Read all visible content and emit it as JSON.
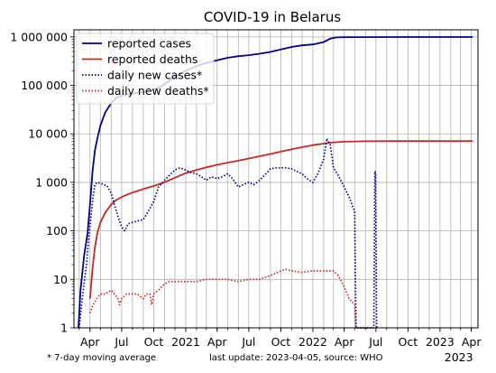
{
  "chart_data": {
    "type": "line",
    "title": "COVID-19 in Belarus",
    "y_scale": "log",
    "ylim": [
      1,
      1400000
    ],
    "xlim": [
      "2020-02-15",
      "2023-04-20"
    ],
    "grid": true,
    "legend_position": "top-left",
    "y_ticks": [
      {
        "value": 1,
        "label": "1"
      },
      {
        "value": 10,
        "label": "10"
      },
      {
        "value": 100,
        "label": "100"
      },
      {
        "value": 1000,
        "label": "1 000"
      },
      {
        "value": 10000,
        "label": "10 000"
      },
      {
        "value": 100000,
        "label": "100 000"
      },
      {
        "value": 1000000,
        "label": "1 000 000"
      }
    ],
    "x_ticks": [
      {
        "date": "2020-04-01",
        "label": "Apr"
      },
      {
        "date": "2020-07-01",
        "label": "Jul"
      },
      {
        "date": "2020-10-01",
        "label": "Oct"
      },
      {
        "date": "2021-01-01",
        "label": "2021"
      },
      {
        "date": "2021-04-01",
        "label": "Apr"
      },
      {
        "date": "2021-07-01",
        "label": "Jul"
      },
      {
        "date": "2021-10-01",
        "label": "Oct"
      },
      {
        "date": "2022-01-01",
        "label": "2022"
      },
      {
        "date": "2022-04-01",
        "label": "Apr"
      },
      {
        "date": "2022-07-01",
        "label": "Jul"
      },
      {
        "date": "2022-10-01",
        "label": "Oct"
      },
      {
        "date": "2023-01-01",
        "label": "2023"
      },
      {
        "date": "2023-04-01",
        "label": "Apr"
      }
    ],
    "x_extra_label": "2023",
    "series": [
      {
        "name": "reported cases",
        "color": "#00008b",
        "style": "solid",
        "points": [
          [
            "2020-02-28",
            1
          ],
          [
            "2020-03-05",
            6
          ],
          [
            "2020-03-15",
            30
          ],
          [
            "2020-03-25",
            90
          ],
          [
            "2020-04-01",
            350
          ],
          [
            "2020-04-08",
            1600
          ],
          [
            "2020-04-15",
            4500
          ],
          [
            "2020-04-22",
            8000
          ],
          [
            "2020-05-01",
            15000
          ],
          [
            "2020-05-15",
            28000
          ],
          [
            "2020-06-01",
            43000
          ],
          [
            "2020-06-15",
            55000
          ],
          [
            "2020-07-01",
            62000
          ],
          [
            "2020-08-01",
            68000
          ],
          [
            "2020-09-01",
            73000
          ],
          [
            "2020-10-01",
            80000
          ],
          [
            "2020-11-01",
            105000
          ],
          [
            "2020-12-01",
            150000
          ],
          [
            "2021-01-01",
            200000
          ],
          [
            "2021-02-01",
            250000
          ],
          [
            "2021-03-01",
            290000
          ],
          [
            "2021-04-01",
            330000
          ],
          [
            "2021-05-01",
            370000
          ],
          [
            "2021-06-01",
            400000
          ],
          [
            "2021-07-01",
            420000
          ],
          [
            "2021-08-01",
            450000
          ],
          [
            "2021-09-01",
            490000
          ],
          [
            "2021-10-01",
            550000
          ],
          [
            "2021-11-01",
            620000
          ],
          [
            "2021-12-01",
            670000
          ],
          [
            "2022-01-01",
            700000
          ],
          [
            "2022-02-01",
            780000
          ],
          [
            "2022-02-20",
            920000
          ],
          [
            "2022-03-10",
            975000
          ],
          [
            "2022-04-01",
            985000
          ],
          [
            "2022-06-01",
            990000
          ],
          [
            "2022-09-01",
            994000
          ],
          [
            "2023-01-01",
            995000
          ],
          [
            "2023-04-05",
            995000
          ]
        ]
      },
      {
        "name": "reported deaths",
        "color": "#c62828",
        "style": "solid",
        "points": [
          [
            "2020-04-01",
            4
          ],
          [
            "2020-04-08",
            16
          ],
          [
            "2020-04-15",
            45
          ],
          [
            "2020-04-22",
            90
          ],
          [
            "2020-05-01",
            150
          ],
          [
            "2020-05-15",
            240
          ],
          [
            "2020-06-01",
            350
          ],
          [
            "2020-06-15",
            430
          ],
          [
            "2020-07-01",
            500
          ],
          [
            "2020-08-01",
            620
          ],
          [
            "2020-09-01",
            730
          ],
          [
            "2020-10-01",
            840
          ],
          [
            "2020-11-01",
            1000
          ],
          [
            "2020-12-01",
            1250
          ],
          [
            "2021-01-01",
            1550
          ],
          [
            "2021-02-01",
            1800
          ],
          [
            "2021-03-01",
            2050
          ],
          [
            "2021-04-01",
            2300
          ],
          [
            "2021-05-01",
            2550
          ],
          [
            "2021-06-01",
            2800
          ],
          [
            "2021-07-01",
            3100
          ],
          [
            "2021-08-01",
            3450
          ],
          [
            "2021-09-01",
            3850
          ],
          [
            "2021-10-01",
            4300
          ],
          [
            "2021-11-01",
            4800
          ],
          [
            "2021-12-01",
            5300
          ],
          [
            "2022-01-01",
            5850
          ],
          [
            "2022-02-01",
            6300
          ],
          [
            "2022-03-01",
            6700
          ],
          [
            "2022-04-01",
            6900
          ],
          [
            "2022-06-01",
            7050
          ],
          [
            "2022-09-01",
            7100
          ],
          [
            "2023-01-01",
            7110
          ],
          [
            "2023-04-05",
            7120
          ]
        ]
      },
      {
        "name": "daily new cases*",
        "color": "#00008b",
        "style": "dotted",
        "points": [
          [
            "2020-03-01",
            1
          ],
          [
            "2020-03-08",
            3
          ],
          [
            "2020-03-15",
            8
          ],
          [
            "2020-03-22",
            20
          ],
          [
            "2020-03-29",
            80
          ],
          [
            "2020-04-04",
            200
          ],
          [
            "2020-04-10",
            500
          ],
          [
            "2020-04-15",
            900
          ],
          [
            "2020-04-22",
            1000
          ],
          [
            "2020-05-01",
            950
          ],
          [
            "2020-05-10",
            900
          ],
          [
            "2020-05-20",
            850
          ],
          [
            "2020-06-01",
            600
          ],
          [
            "2020-06-10",
            350
          ],
          [
            "2020-06-20",
            200
          ],
          [
            "2020-07-01",
            120
          ],
          [
            "2020-07-10",
            100
          ],
          [
            "2020-07-20",
            140
          ],
          [
            "2020-08-01",
            150
          ],
          [
            "2020-08-15",
            160
          ],
          [
            "2020-09-01",
            170
          ],
          [
            "2020-09-15",
            250
          ],
          [
            "2020-10-01",
            400
          ],
          [
            "2020-10-15",
            800
          ],
          [
            "2020-11-01",
            1100
          ],
          [
            "2020-11-15",
            1400
          ],
          [
            "2020-12-01",
            1800
          ],
          [
            "2020-12-15",
            2000
          ],
          [
            "2021-01-01",
            1800
          ],
          [
            "2021-01-15",
            1600
          ],
          [
            "2021-02-01",
            1500
          ],
          [
            "2021-02-15",
            1300
          ],
          [
            "2021-03-01",
            1100
          ],
          [
            "2021-03-15",
            1300
          ],
          [
            "2021-04-01",
            1200
          ],
          [
            "2021-04-15",
            1300
          ],
          [
            "2021-05-01",
            1500
          ],
          [
            "2021-05-15",
            1200
          ],
          [
            "2021-06-01",
            800
          ],
          [
            "2021-06-15",
            900
          ],
          [
            "2021-07-01",
            1000
          ],
          [
            "2021-07-15",
            900
          ],
          [
            "2021-08-01",
            1100
          ],
          [
            "2021-08-15",
            1400
          ],
          [
            "2021-09-01",
            1900
          ],
          [
            "2021-09-15",
            2000
          ],
          [
            "2021-10-01",
            2000
          ],
          [
            "2021-10-15",
            2000
          ],
          [
            "2021-11-01",
            1900
          ],
          [
            "2021-11-15",
            1700
          ],
          [
            "2021-12-01",
            1500
          ],
          [
            "2021-12-15",
            1200
          ],
          [
            "2022-01-01",
            1000
          ],
          [
            "2022-01-15",
            1500
          ],
          [
            "2022-02-01",
            3000
          ],
          [
            "2022-02-10",
            8000
          ],
          [
            "2022-02-20",
            6000
          ],
          [
            "2022-03-01",
            2000
          ],
          [
            "2022-03-15",
            1400
          ],
          [
            "2022-04-01",
            800
          ],
          [
            "2022-04-15",
            500
          ],
          [
            "2022-05-01",
            250
          ],
          [
            "2022-05-05",
            1
          ],
          [
            "2022-06-25",
            1
          ],
          [
            "2022-06-28",
            1700
          ],
          [
            "2022-06-30",
            1600
          ],
          [
            "2022-07-03",
            1
          ]
        ]
      },
      {
        "name": "daily new deaths*",
        "color": "#c62828",
        "style": "dotted",
        "points": [
          [
            "2020-04-01",
            2
          ],
          [
            "2020-04-10",
            3
          ],
          [
            "2020-04-20",
            4
          ],
          [
            "2020-05-01",
            5
          ],
          [
            "2020-05-15",
            5
          ],
          [
            "2020-06-01",
            6
          ],
          [
            "2020-06-10",
            5
          ],
          [
            "2020-06-20",
            4
          ],
          [
            "2020-06-25",
            3
          ],
          [
            "2020-07-01",
            4
          ],
          [
            "2020-07-15",
            5
          ],
          [
            "2020-08-01",
            5
          ],
          [
            "2020-08-15",
            5
          ],
          [
            "2020-09-01",
            4
          ],
          [
            "2020-09-10",
            5
          ],
          [
            "2020-09-20",
            5
          ],
          [
            "2020-09-25",
            3
          ],
          [
            "2020-10-01",
            5
          ],
          [
            "2020-10-15",
            6
          ],
          [
            "2020-11-01",
            8
          ],
          [
            "2020-11-15",
            9
          ],
          [
            "2020-12-01",
            9
          ],
          [
            "2021-01-01",
            9
          ],
          [
            "2021-02-01",
            9
          ],
          [
            "2021-03-01",
            10
          ],
          [
            "2021-04-01",
            10
          ],
          [
            "2021-05-01",
            10
          ],
          [
            "2021-06-01",
            9
          ],
          [
            "2021-07-01",
            10
          ],
          [
            "2021-08-01",
            10
          ],
          [
            "2021-09-01",
            12
          ],
          [
            "2021-10-01",
            15
          ],
          [
            "2021-10-15",
            16
          ],
          [
            "2021-11-01",
            15
          ],
          [
            "2021-12-01",
            14
          ],
          [
            "2022-01-01",
            15
          ],
          [
            "2022-02-01",
            15
          ],
          [
            "2022-03-01",
            15
          ],
          [
            "2022-03-15",
            12
          ],
          [
            "2022-04-01",
            7
          ],
          [
            "2022-04-15",
            4
          ],
          [
            "2022-05-01",
            3
          ],
          [
            "2022-05-05",
            1
          ],
          [
            "2022-06-25",
            1
          ]
        ]
      }
    ],
    "footnote_left": "* 7-day moving average",
    "footnote_right": "last update: 2023-04-05, source: WHO"
  }
}
